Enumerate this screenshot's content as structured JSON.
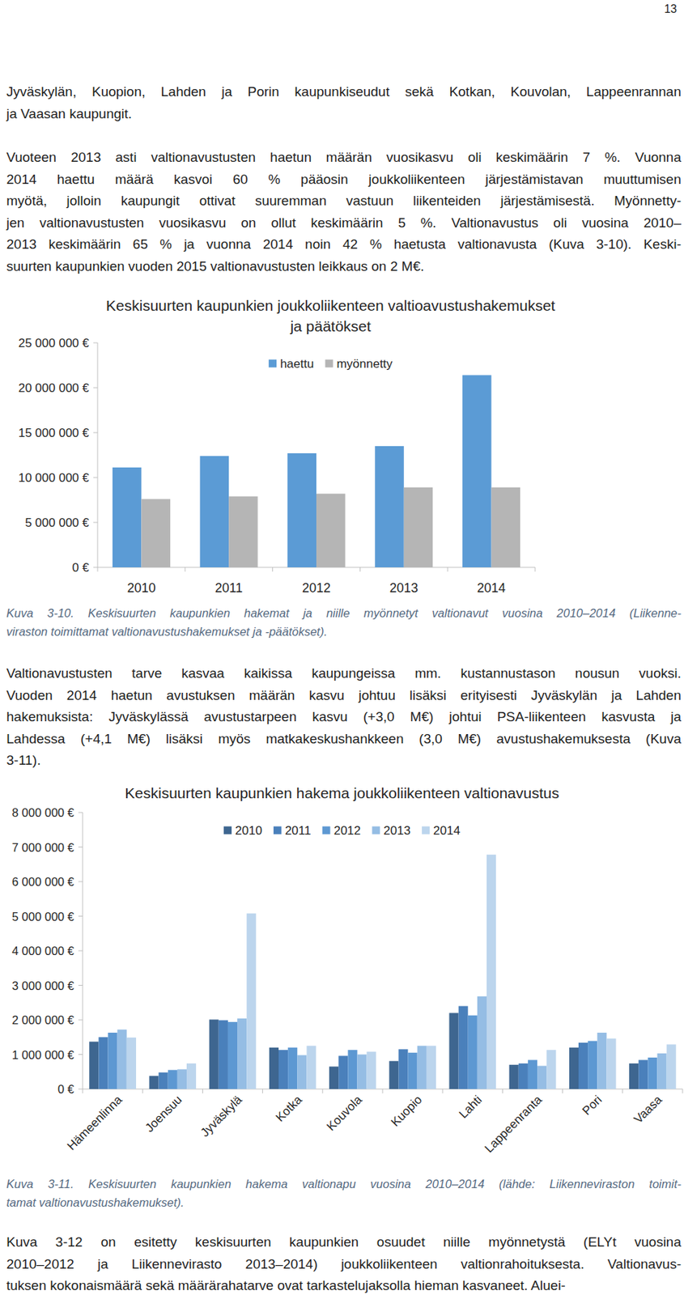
{
  "page_number": "13",
  "paragraphs": [
    [
      "Jyväskylän, Kuopion, Lahden ja Porin kaupunkiseudut sekä Kotkan, Kouvolan, Lappeenrannan",
      "ja Vaasan kaupungit."
    ],
    [
      "Vuoteen 2013 asti valtionavustusten haetun määrän vuosikasvu oli keskimäärin 7 %. Vuonna",
      "2014 haettu määrä kasvoi 60 % pääosin joukkoliikenteen järjestämistavan muuttumisen",
      "myötä, jolloin kaupungit ottivat suuremman vastuun liikenteiden järjestämisestä. Myönnetty-",
      "jen valtionavustusten vuosikasvu on ollut keskimäärin 5 %. Valtionavustus oli vuosina 2010–",
      "2013 keskimäärin 65 % ja vuonna 2014 noin 42 % haetusta valtionavusta (Kuva 3-10). Keski-",
      "suurten kaupunkien vuoden 2015 valtionavustusten leikkaus on 2 M€."
    ],
    [
      "Valtionavustusten tarve kasvaa kaikissa kaupungeissa mm. kustannustason nousun vuoksi.",
      "Vuoden 2014 haetun avustuksen määrän kasvu johtuu lisäksi erityisesti Jyväskylän ja Lahden",
      "hakemuksista: Jyväskylässä avustustarpeen kasvu (+3,0 M€) johtui PSA-liikenteen kasvusta ja",
      "Lahdessa (+4,1 M€) lisäksi myös matkakeskushankkeen (3,0 M€) avustushakemuksesta (Kuva",
      "3-11)."
    ],
    [
      "Kuva 3-12 on esitetty keskisuurten kaupunkien osuudet niille myönnetystä (ELYt vuosina",
      "2010–2012 ja Liikennevirasto 2013–2014) joukkoliikenteen valtionrahoituksesta. Valtionavus-",
      "tuksen kokonaismäärä sekä määrärahatarve ovat tarkastelujaksolla hieman kasvaneet. Aluei-"
    ]
  ],
  "captions": [
    [
      "Kuva 3-10. Keskisuurten kaupunkien hakemat ja niille myönnetyt valtionavut vuosina 2010–2014 (Liikenne-",
      "viraston toimittamat valtionavustushakemukset ja -päätökset)."
    ],
    [
      "Kuva 3-11. Keskisuurten kaupunkien hakema valtionapu vuosina 2010–2014 (lähde: Liikenneviraston toimit-",
      "tamat valtionavustushakemukset)."
    ]
  ],
  "chart_data": [
    {
      "type": "bar",
      "title": "Keskisuurten kaupunkien joukkoliikenteen valtioavustushakemukset\nja päätökset",
      "categories": [
        "2010",
        "2011",
        "2012",
        "2013",
        "2014"
      ],
      "series": [
        {
          "name": "haettu",
          "color": "#5b9bd5",
          "values": [
            11120000,
            12400000,
            12700000,
            13500000,
            21400000
          ]
        },
        {
          "name": "myönnetty",
          "color": "#b5b5b5",
          "values": [
            7600000,
            7900000,
            8200000,
            8900000,
            8900000
          ]
        }
      ],
      "ylim": [
        0,
        25000000
      ],
      "yticks": [
        {
          "value": 0,
          "label": "0 €"
        },
        {
          "value": 5000000,
          "label": "5 000 000 €"
        },
        {
          "value": 10000000,
          "label": "10 000 000 €"
        },
        {
          "value": 15000000,
          "label": "15 000 000 €"
        },
        {
          "value": 20000000,
          "label": "20 000 000 €"
        },
        {
          "value": 25000000,
          "label": "25 000 000 €"
        }
      ],
      "legend": "top",
      "grid": false
    },
    {
      "type": "bar",
      "title": "Keskisuurten kaupunkien hakema joukkoliikenteen valtionavustus",
      "categories": [
        "Hämeenlinna",
        "Joensuu",
        "Jyväskylä",
        "Kotka",
        "Kouvola",
        "Kuopio",
        "Lahti",
        "Lappeenranta",
        "Pori",
        "Vaasa"
      ],
      "series": [
        {
          "name": "2010",
          "color": "#3e6690",
          "values": [
            1370000,
            380000,
            2010000,
            1200000,
            650000,
            810000,
            2200000,
            700000,
            1200000,
            740000
          ]
        },
        {
          "name": "2011",
          "color": "#4a80bb",
          "values": [
            1500000,
            480000,
            1990000,
            1130000,
            960000,
            1150000,
            2400000,
            740000,
            1340000,
            840000
          ]
        },
        {
          "name": "2012",
          "color": "#5d98d2",
          "values": [
            1630000,
            550000,
            1940000,
            1200000,
            1130000,
            1050000,
            2130000,
            840000,
            1390000,
            910000
          ]
        },
        {
          "name": "2013",
          "color": "#95bde4",
          "values": [
            1720000,
            570000,
            2040000,
            980000,
            1000000,
            1250000,
            2680000,
            670000,
            1630000,
            1030000
          ]
        },
        {
          "name": "2014",
          "color": "#bcd5ed",
          "values": [
            1490000,
            740000,
            5080000,
            1250000,
            1080000,
            1250000,
            6780000,
            1130000,
            1460000,
            1290000
          ]
        }
      ],
      "ylim": [
        0,
        8000000
      ],
      "yticks": [
        {
          "value": 0,
          "label": "0 €"
        },
        {
          "value": 1000000,
          "label": "1 000 000 €"
        },
        {
          "value": 2000000,
          "label": "2 000 000 €"
        },
        {
          "value": 3000000,
          "label": "3 000 000 €"
        },
        {
          "value": 4000000,
          "label": "4 000 000 €"
        },
        {
          "value": 5000000,
          "label": "5 000 000 €"
        },
        {
          "value": 6000000,
          "label": "6 000 000 €"
        },
        {
          "value": 7000000,
          "label": "7 000 000 €"
        },
        {
          "value": 8000000,
          "label": "8 000 000 €"
        }
      ],
      "legend": "top",
      "grid": false
    }
  ]
}
